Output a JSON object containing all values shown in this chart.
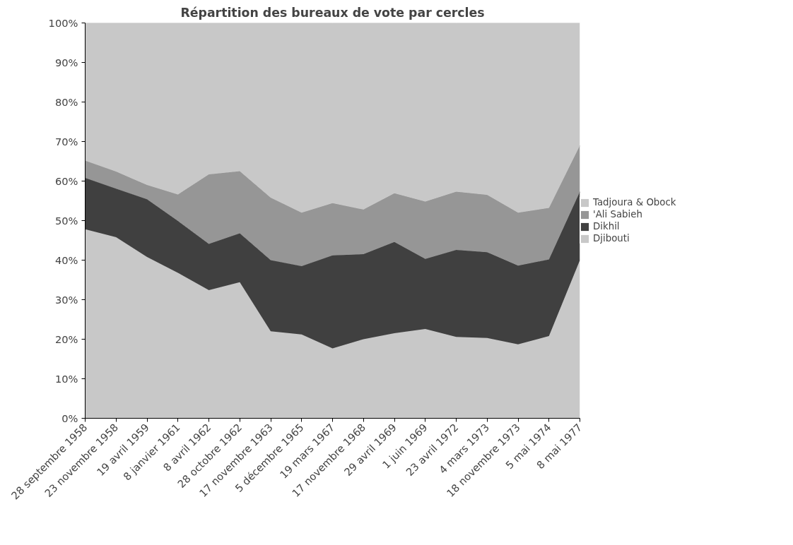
{
  "chart_data": {
    "type": "area",
    "stacked": true,
    "title": "Répartition des bureaux de vote par cercles",
    "categories": [
      "28 septembre 1958",
      "23 novembre 1958",
      "19 avril 1959",
      "8 janvier 1961",
      "8 avril 1962",
      "28 octobre 1962",
      "17 novembre 1963",
      "5 décembre 1965",
      "19 mars 1967",
      "17 novembre 1968",
      "29 avril 1969",
      "1 juin 1969",
      "23 avril 1972",
      "4 mars 1973",
      "18 novembre 1973",
      "5 mai 1974",
      "8 mai 1977"
    ],
    "series": [
      {
        "name": "Djibouti",
        "color": "#c8c8c8",
        "values": [
          47.8,
          45.8,
          40.8,
          36.8,
          32.4,
          34.4,
          22.0,
          21.2,
          17.7,
          20.0,
          21.5,
          22.6,
          20.6,
          20.3,
          18.7,
          20.8,
          40.0
        ]
      },
      {
        "name": "Dikhil",
        "color": "#404040",
        "values": [
          13.0,
          12.3,
          14.6,
          13.1,
          11.7,
          12.4,
          18.0,
          17.3,
          23.5,
          21.5,
          23.1,
          17.7,
          22.0,
          21.7,
          19.9,
          19.4,
          17.3
        ]
      },
      {
        "name": "'Ali Sabieh",
        "color": "#969696",
        "values": [
          4.4,
          4.3,
          3.6,
          6.7,
          17.6,
          15.7,
          15.8,
          13.5,
          13.2,
          11.3,
          12.3,
          14.5,
          14.7,
          14.5,
          13.4,
          13.0,
          11.7
        ]
      },
      {
        "name": "Tadjoura & Obock",
        "color": "#c8c8c8",
        "values": [
          34.8,
          37.6,
          41.0,
          43.4,
          38.3,
          37.5,
          44.2,
          48.0,
          45.6,
          47.2,
          43.1,
          45.2,
          42.7,
          43.5,
          48.0,
          46.8,
          31.0
        ]
      }
    ],
    "ylim": [
      0,
      100
    ],
    "yticks": [
      {
        "value": 0,
        "label": "0%"
      },
      {
        "value": 10,
        "label": "10%"
      },
      {
        "value": 20,
        "label": "20%"
      },
      {
        "value": 30,
        "label": "30%"
      },
      {
        "value": 40,
        "label": "40%"
      },
      {
        "value": 50,
        "label": "50%"
      },
      {
        "value": 60,
        "label": "60%"
      },
      {
        "value": 70,
        "label": "70%"
      },
      {
        "value": 80,
        "label": "80%"
      },
      {
        "value": 90,
        "label": "90%"
      },
      {
        "value": 100,
        "label": "100%"
      }
    ],
    "legend": "right"
  }
}
